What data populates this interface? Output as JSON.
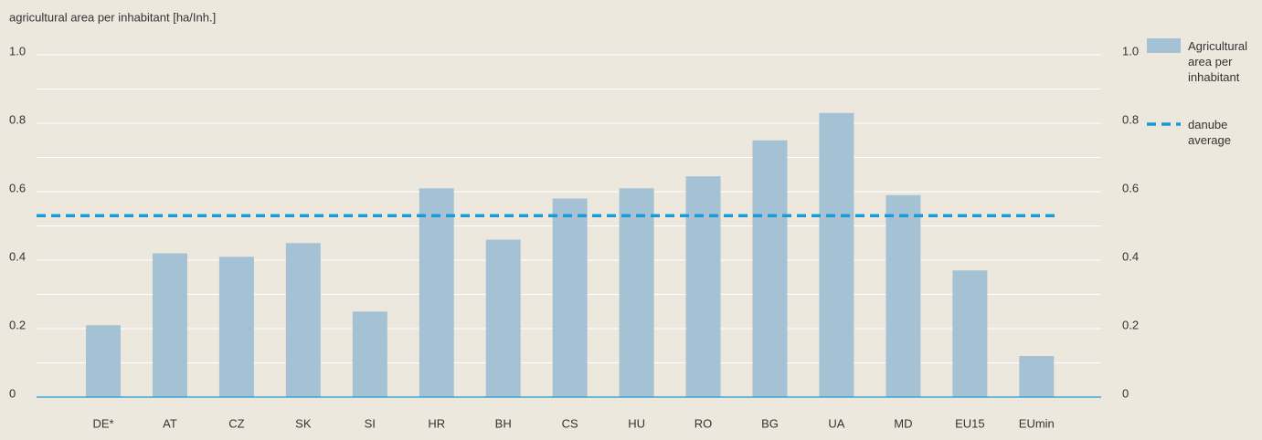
{
  "chart_data": {
    "type": "bar",
    "y_axis_label": "agricultural area per inhabitant [ha/Inh.]",
    "categories": [
      "DE*",
      "AT",
      "CZ",
      "SK",
      "SI",
      "HR",
      "BH",
      "CS",
      "HU",
      "RO",
      "BG",
      "UA",
      "MD",
      "EU15",
      "EUmin"
    ],
    "series": [
      {
        "name": "Agricultural area per inhabitant",
        "color": "#a4c2d3",
        "values": [
          0.21,
          0.42,
          0.41,
          0.45,
          0.25,
          0.61,
          0.46,
          0.58,
          0.61,
          0.645,
          0.75,
          0.83,
          0.59,
          0.37,
          0.12
        ]
      }
    ],
    "reference_line": {
      "name": "danube average",
      "color": "#1a9ad6",
      "value": 0.53,
      "style": "dashed"
    },
    "ylim": [
      0,
      1
    ],
    "yticks": [
      0,
      0.2,
      0.4,
      0.6,
      0.8,
      {
        "value": 1,
        "label": "1.0"
      }
    ],
    "minor_yticks": [
      0.1,
      0.3,
      0.5,
      0.7,
      0.9
    ],
    "y2lim": [
      0,
      1
    ],
    "y2ticks": [
      0,
      0.2,
      0.4,
      0.6,
      0.8,
      {
        "value": 1,
        "label": "1.0"
      }
    ],
    "grid": true,
    "legend": "right"
  }
}
